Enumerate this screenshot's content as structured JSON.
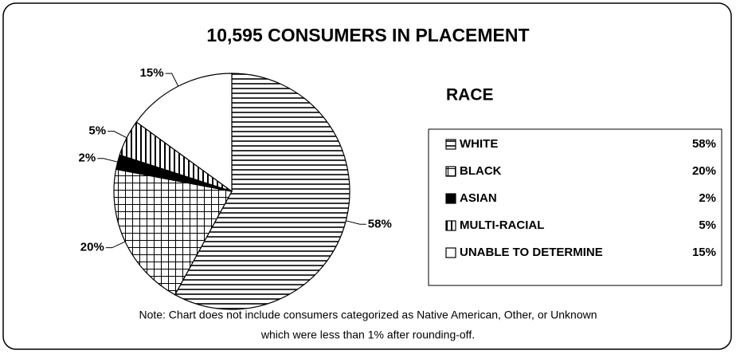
{
  "chart_data": {
    "type": "pie",
    "title": "10,595 CONSUMERS IN PLACEMENT",
    "legend_title": "RACE",
    "categories": [
      "WHITE",
      "BLACK",
      "ASIAN",
      "MULTI-RACIAL",
      "UNABLE TO DETERMINE"
    ],
    "values": [
      58,
      20,
      2,
      5,
      15
    ],
    "value_labels": [
      "58%",
      "20%",
      "2%",
      "5%",
      "15%"
    ],
    "patterns": [
      "horizontal",
      "grid",
      "solid",
      "vertical",
      "none"
    ],
    "color": "#000000",
    "note": [
      "Note: Chart does not include consumers categorized as Native American, Other, or Unknown",
      "which were less than 1% after rounding-off."
    ]
  }
}
